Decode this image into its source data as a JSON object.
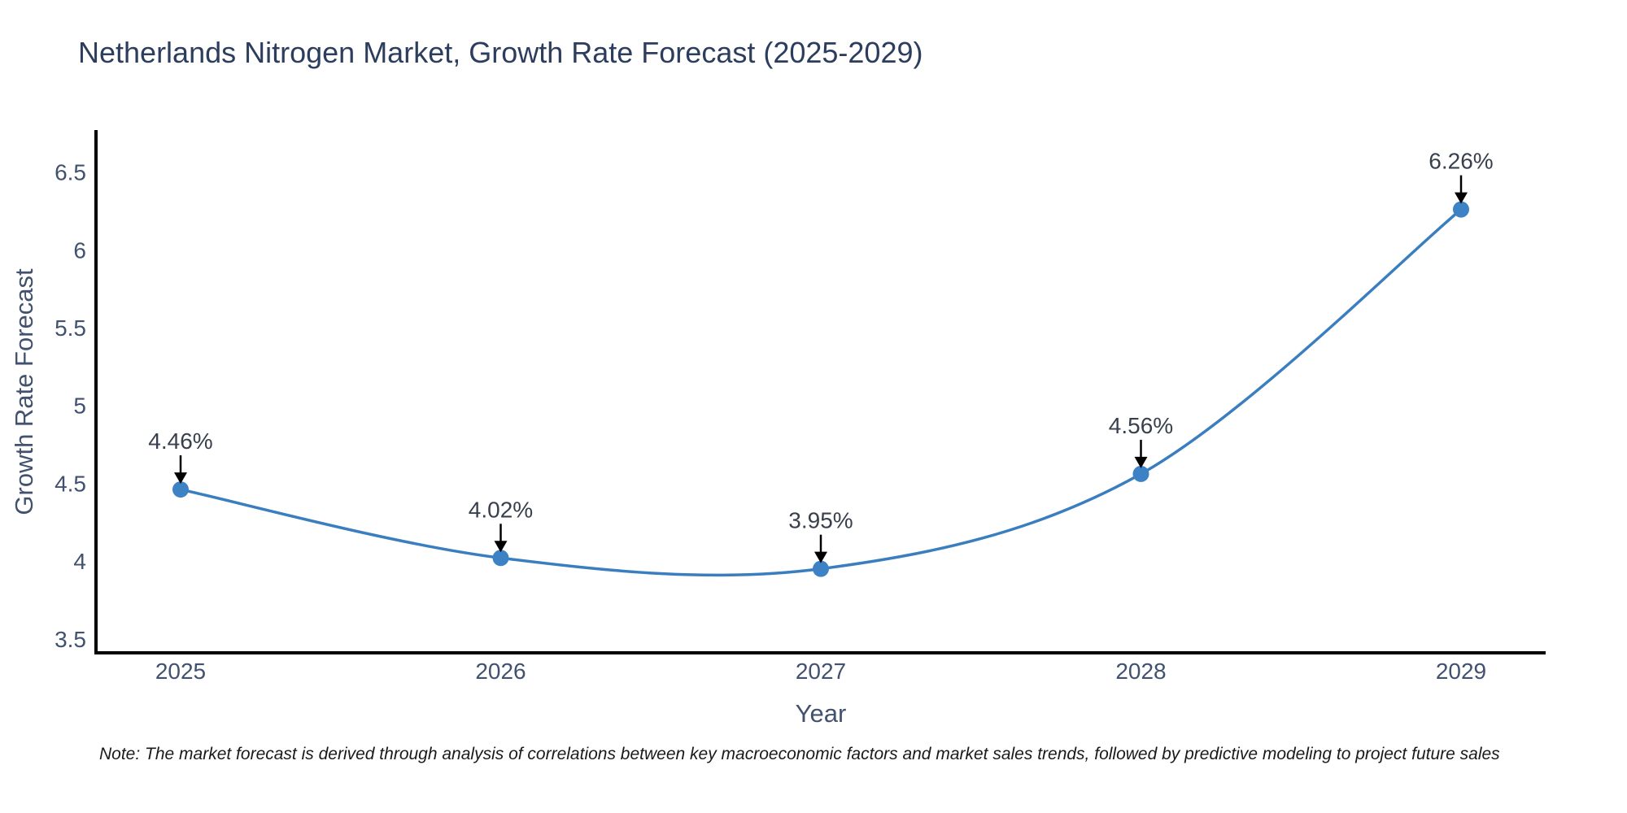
{
  "title": "Netherlands Nitrogen Market, Growth Rate Forecast (2025-2029)",
  "footnote": "Note: The market forecast is derived through analysis of correlations between key macroeconomic factors and market sales trends, followed by predictive modeling to project future sales",
  "colors": {
    "line": "#3a7ebf",
    "marker": "#3d82c4",
    "axis": "#000000",
    "arrow": "#000000",
    "title_text": "#2c3d5d",
    "tick_text": "#42526e",
    "annotation_text": "#39404d",
    "note_text": "#1a1a1a",
    "background": "#ffffff"
  },
  "chart_data": {
    "type": "line",
    "title": "Netherlands Nitrogen Market, Growth Rate Forecast (2025-2029)",
    "xlabel": "Year",
    "ylabel": "Growth Rate Forecast",
    "x": [
      2025,
      2026,
      2027,
      2028,
      2029
    ],
    "series": [
      {
        "name": "Growth Rate Forecast",
        "values": [
          4.46,
          4.02,
          3.95,
          4.56,
          6.26
        ],
        "labels": [
          "4.46%",
          "4.02%",
          "3.95%",
          "4.56%",
          "6.26%"
        ]
      }
    ],
    "yticks": [
      3.5,
      4,
      4.5,
      5,
      5.5,
      6,
      6.5
    ],
    "ylim": [
      3.41,
      6.77
    ],
    "grid": false,
    "legend": "none",
    "curve": "spline",
    "point_annotations_with_arrows": true
  }
}
